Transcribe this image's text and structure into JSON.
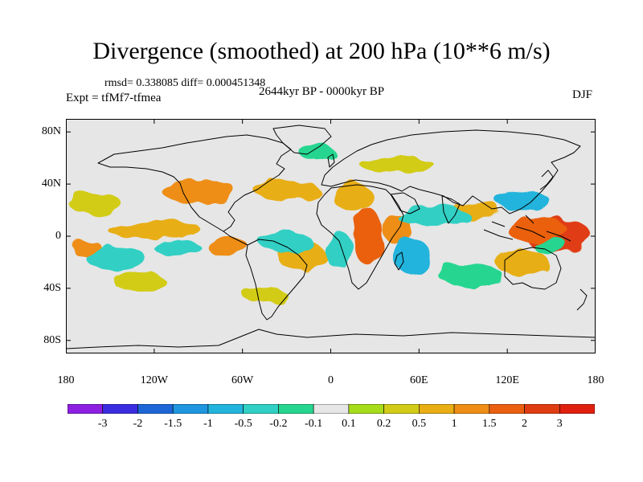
{
  "title": "Divergence (smoothed) at 200 hPa (10**6 m/s)",
  "rmsd_text": "rmsd= 0.338085 diff= 0.000451348",
  "experiment": "Expt = tfMf7-tfmea",
  "period": "2644kyr BP - 0000kyr BP",
  "season": "DJF",
  "chart_data": {
    "type": "heatmap",
    "projection": "cylindrical equidistant (global)",
    "x_ticks": [
      "180",
      "120W",
      "60W",
      "0",
      "60E",
      "120E",
      "180"
    ],
    "x_tick_values": [
      -180,
      -120,
      -60,
      0,
      60,
      120,
      180
    ],
    "y_ticks": [
      "80N",
      "40N",
      "0",
      "40S",
      "80S"
    ],
    "y_tick_values": [
      80,
      40,
      0,
      -40,
      -80
    ],
    "xlim": [
      -180,
      180
    ],
    "ylim": [
      -90,
      90
    ],
    "colorbar": {
      "labels": [
        "-3",
        "-2",
        "-1.5",
        "-1",
        "-0.5",
        "-0.2",
        "-0.1",
        "0.1",
        "0.2",
        "0.5",
        "1",
        "1.5",
        "2",
        "3"
      ],
      "colors": [
        "#8c1fe0",
        "#3a2ee0",
        "#1c66d8",
        "#1e96e0",
        "#22b4dc",
        "#30d0c4",
        "#26d690",
        "#e6e6e6",
        "#a6dc1a",
        "#d2cc18",
        "#e8ae14",
        "#ee8e14",
        "#ea6010",
        "#e03c12",
        "#e0200e"
      ]
    },
    "features": [
      {
        "lon": 155,
        "lat": 0,
        "rx": 22,
        "ry": 14,
        "value": 2
      },
      {
        "lon": 140,
        "lat": 5,
        "rx": 20,
        "ry": 10,
        "value": 1.5
      },
      {
        "lon": 25,
        "lat": 0,
        "rx": 10,
        "ry": 22,
        "value": 1.5
      },
      {
        "lon": 45,
        "lat": 6,
        "rx": 10,
        "ry": 12,
        "value": 1
      },
      {
        "lon": -70,
        "lat": -8,
        "rx": 14,
        "ry": 7,
        "value": 1
      },
      {
        "lon": -165,
        "lat": -10,
        "rx": 10,
        "ry": 7,
        "value": 1
      },
      {
        "lon": -90,
        "lat": 35,
        "rx": 25,
        "ry": 10,
        "value": 1
      },
      {
        "lon": -30,
        "lat": 35,
        "rx": 22,
        "ry": 8,
        "value": 0.5
      },
      {
        "lon": -120,
        "lat": 5,
        "rx": 32,
        "ry": 6,
        "value": 0.5
      },
      {
        "lon": -20,
        "lat": -15,
        "rx": 16,
        "ry": 12,
        "value": 0.5
      },
      {
        "lon": 15,
        "lat": 30,
        "rx": 14,
        "ry": 10,
        "value": 0.5
      },
      {
        "lon": 100,
        "lat": 20,
        "rx": 15,
        "ry": 8,
        "value": 0.5
      },
      {
        "lon": 130,
        "lat": -20,
        "rx": 18,
        "ry": 10,
        "value": 0.5
      },
      {
        "lon": -45,
        "lat": -45,
        "rx": 15,
        "ry": 6,
        "value": 0.2
      },
      {
        "lon": -160,
        "lat": 25,
        "rx": 18,
        "ry": 8,
        "value": 0.2
      },
      {
        "lon": 45,
        "lat": 55,
        "rx": 25,
        "ry": 7,
        "value": 0.2
      },
      {
        "lon": -130,
        "lat": -35,
        "rx": 18,
        "ry": 6,
        "value": 0.2
      },
      {
        "lon": 130,
        "lat": 28,
        "rx": 18,
        "ry": 8,
        "value": -1
      },
      {
        "lon": 70,
        "lat": 15,
        "rx": 25,
        "ry": 8,
        "value": -0.5
      },
      {
        "lon": 55,
        "lat": -15,
        "rx": 12,
        "ry": 14,
        "value": -1
      },
      {
        "lon": -30,
        "lat": -5,
        "rx": 18,
        "ry": 8,
        "value": -0.5
      },
      {
        "lon": -145,
        "lat": -18,
        "rx": 20,
        "ry": 10,
        "value": -0.5
      },
      {
        "lon": -105,
        "lat": -8,
        "rx": 16,
        "ry": 6,
        "value": -0.5
      },
      {
        "lon": 5,
        "lat": -10,
        "rx": 10,
        "ry": 14,
        "value": -0.5
      },
      {
        "lon": -10,
        "lat": 65,
        "rx": 12,
        "ry": 6,
        "value": -0.2
      },
      {
        "lon": 150,
        "lat": -8,
        "rx": 12,
        "ry": 6,
        "value": -0.2
      },
      {
        "lon": 95,
        "lat": -30,
        "rx": 22,
        "ry": 8,
        "value": -0.2
      }
    ]
  }
}
